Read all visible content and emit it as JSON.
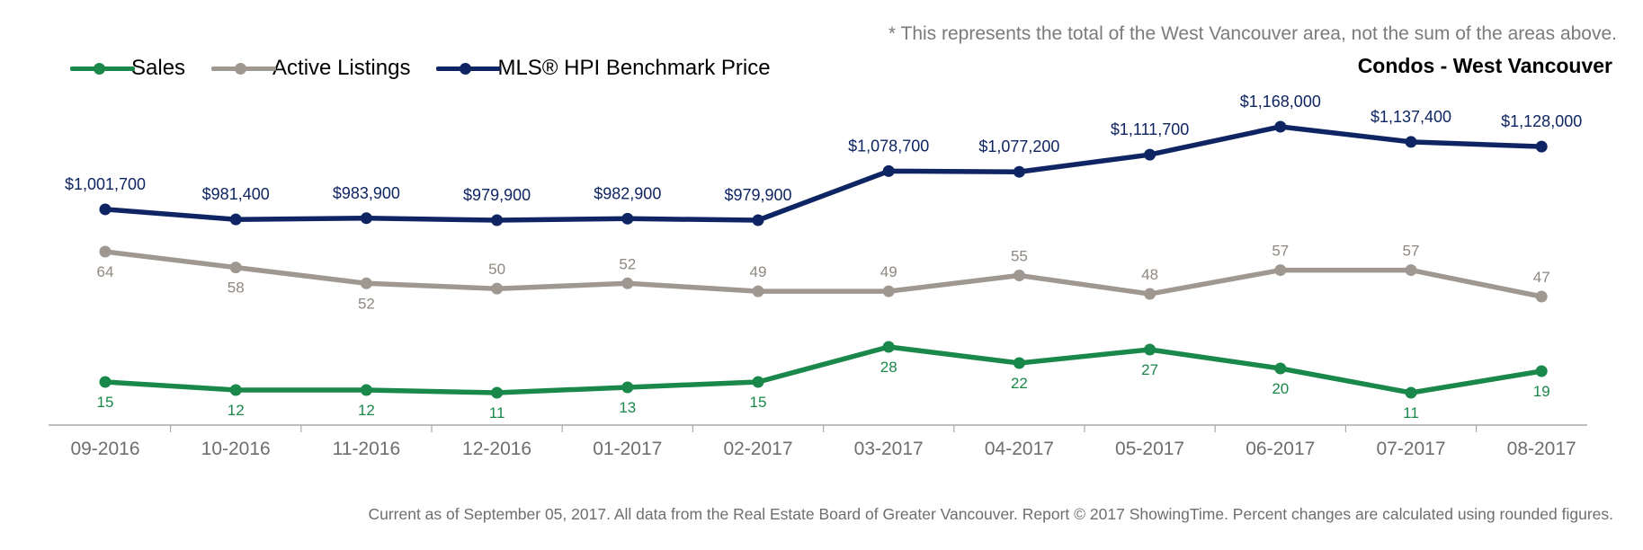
{
  "note": "* This represents the total of the West Vancouver area, not the sum of the areas above.",
  "subtitle": "Condos - West Vancouver",
  "footer": "Current as of September 05, 2017. All data from the Real Estate Board of Greater Vancouver. Report © 2017 ShowingTime. Percent changes are calculated using rounded figures.",
  "chart_data": {
    "type": "line",
    "categories": [
      "09-2016",
      "10-2016",
      "11-2016",
      "12-2016",
      "01-2017",
      "02-2017",
      "03-2017",
      "04-2017",
      "05-2017",
      "06-2017",
      "07-2017",
      "08-2017"
    ],
    "legend_position": "top-left",
    "grid": false,
    "series": [
      {
        "name": "Sales",
        "color": "#19884a",
        "values": [
          15,
          12,
          12,
          11,
          13,
          15,
          28,
          22,
          27,
          20,
          11,
          19
        ],
        "labels": [
          "15",
          "12",
          "12",
          "11",
          "13",
          "15",
          "28",
          "22",
          "27",
          "20",
          "11",
          "19"
        ]
      },
      {
        "name": "Active Listings",
        "color": "#9e9890",
        "values": [
          64,
          58,
          52,
          50,
          52,
          49,
          49,
          55,
          48,
          57,
          57,
          47
        ],
        "labels": [
          "64",
          "58",
          "52",
          "50",
          "52",
          "49",
          "49",
          "55",
          "48",
          "57",
          "57",
          "47"
        ]
      },
      {
        "name": "MLS® HPI Benchmark Price",
        "color": "#0f2563",
        "values": [
          1001700,
          981400,
          983900,
          979900,
          982900,
          979900,
          1078700,
          1077200,
          1111700,
          1168000,
          1137400,
          1128000
        ],
        "labels": [
          "$1,001,700",
          "$981,400",
          "$983,900",
          "$979,900",
          "$982,900",
          "$979,900",
          "$1,078,700",
          "$1,077,200",
          "$1,111,700",
          "$1,168,000",
          "$1,137,400",
          "$1,128,000"
        ]
      }
    ]
  }
}
